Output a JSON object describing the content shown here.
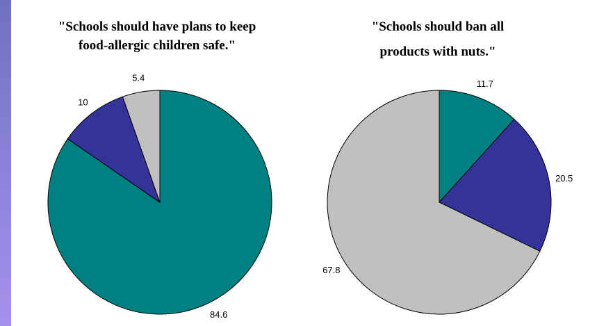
{
  "chart_data": [
    {
      "type": "pie",
      "title_lines": [
        "\"Schools should have plans to keep",
        "food-allergic children safe.\""
      ],
      "slices": [
        {
          "value": 84.6,
          "label": "84.6",
          "color": "#008080"
        },
        {
          "value": 10,
          "label": "10",
          "color": "#333399"
        },
        {
          "value": 5.4,
          "label": "5.4",
          "color": "#C0C0C0"
        }
      ]
    },
    {
      "type": "pie",
      "title_lines": [
        "\"Schools should ban all",
        "products with nuts.\""
      ],
      "slices": [
        {
          "value": 11.7,
          "label": "11.7",
          "color": "#008080"
        },
        {
          "value": 20.5,
          "label": "20.5",
          "color": "#333399"
        },
        {
          "value": 67.8,
          "label": "67.8",
          "color": "#C0C0C0"
        }
      ]
    }
  ]
}
